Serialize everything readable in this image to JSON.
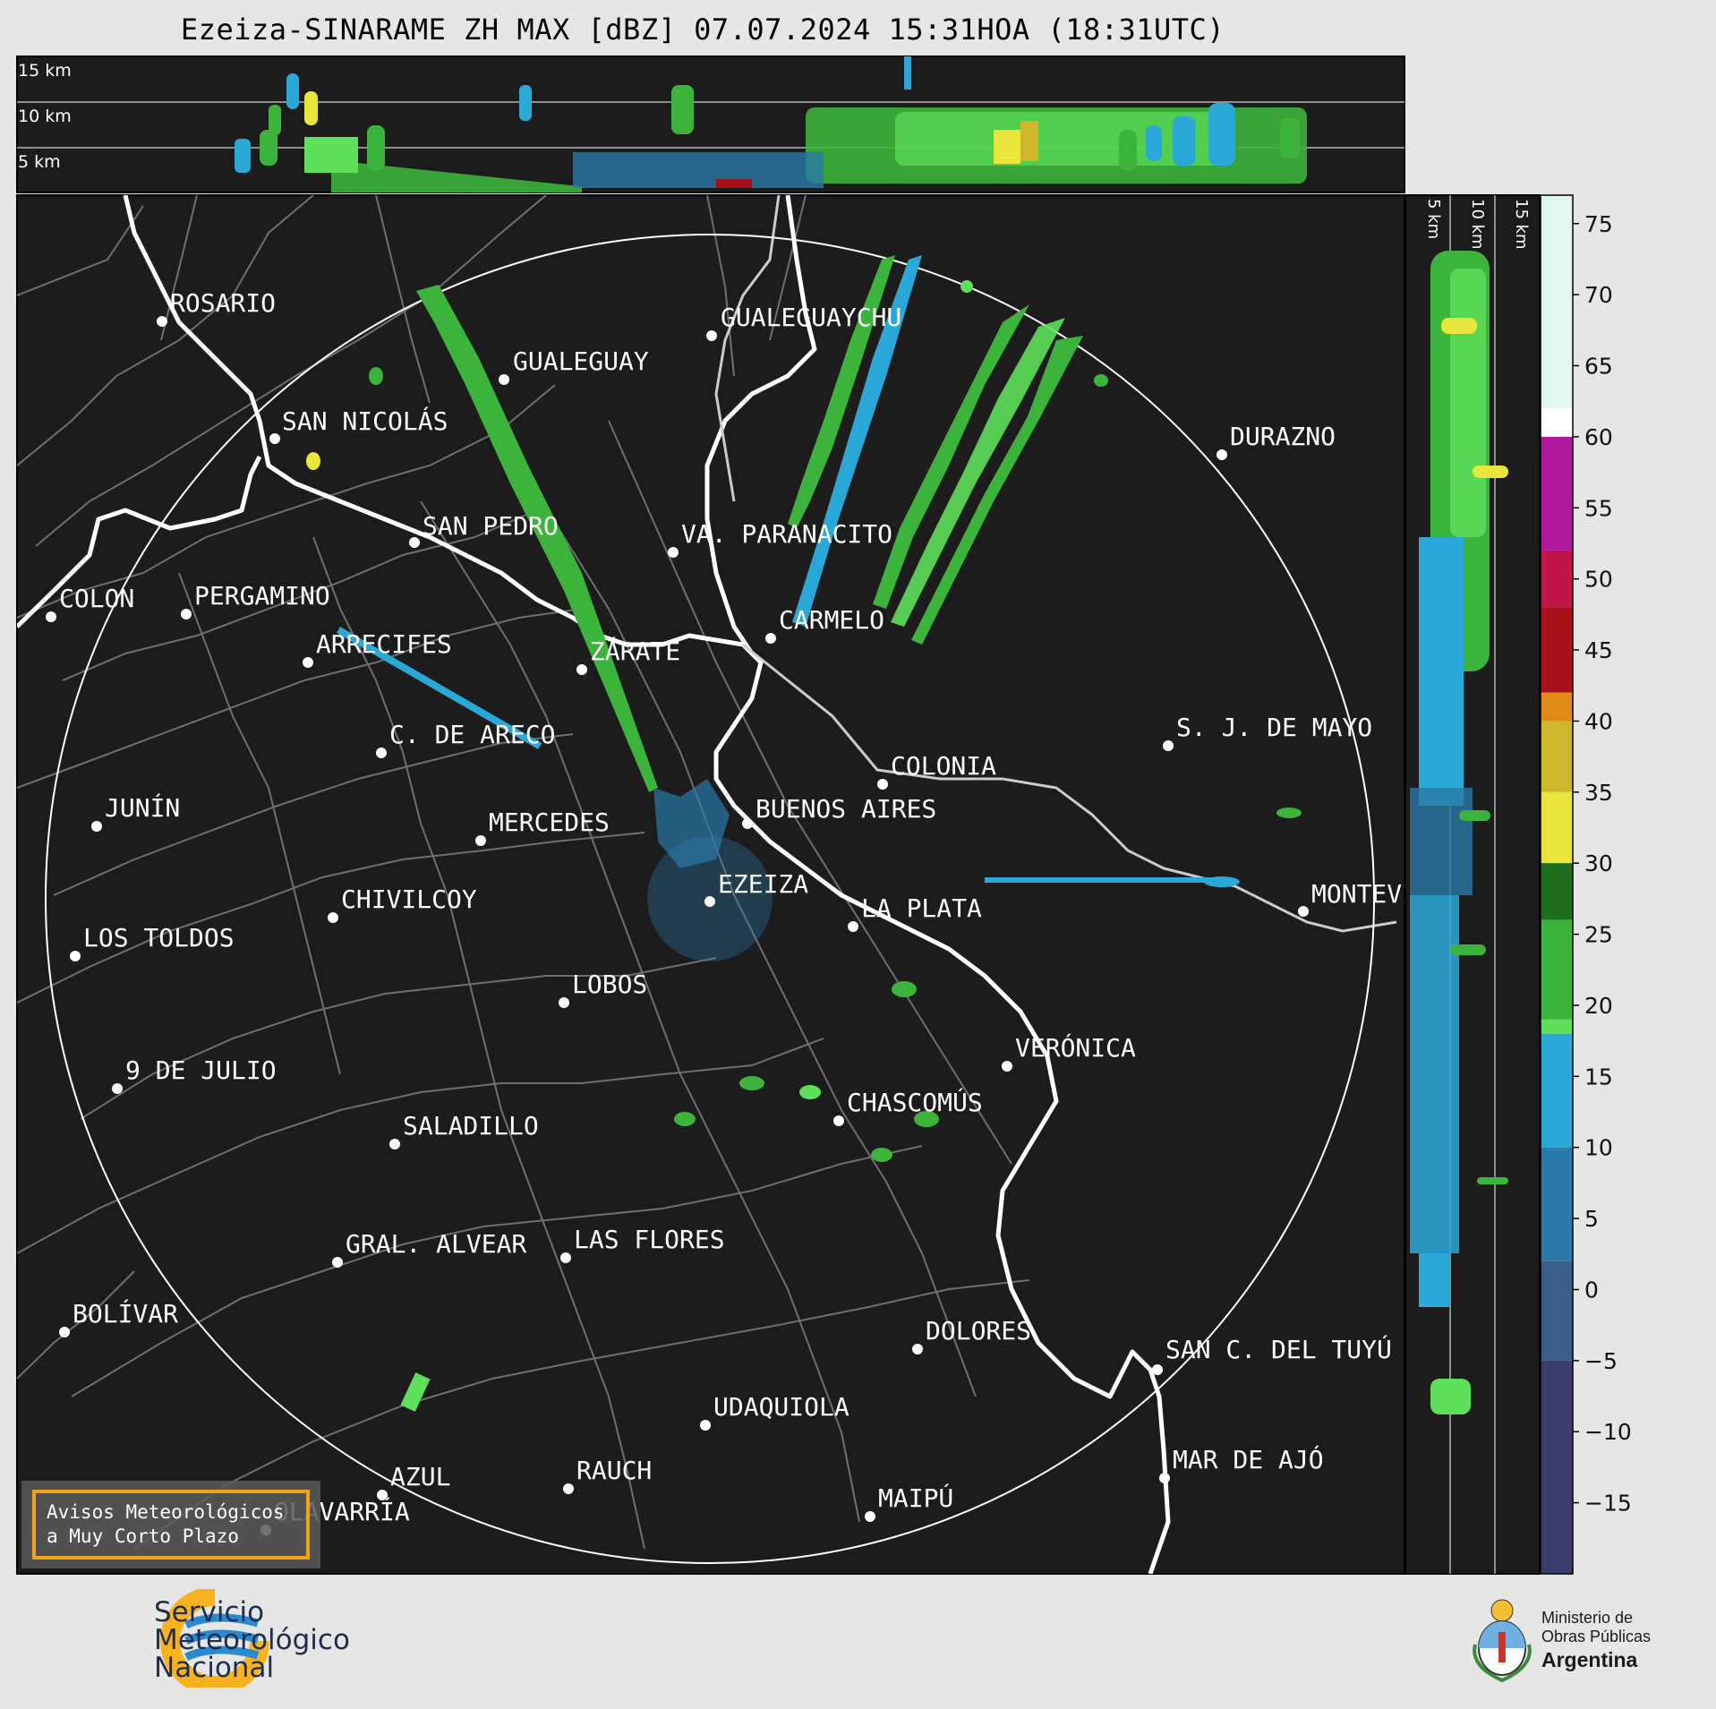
{
  "title": "Ezeiza-SINARAME ZH MAX [dBZ] 07.07.2024 15:31HOA (18:31UTC)",
  "top_panel_labels": [
    "15 km",
    "10 km",
    "5 km"
  ],
  "side_panel_labels": [
    "5 km",
    "10 km",
    "15 km"
  ],
  "colorbar": {
    "tick_labels": [
      "75",
      "70",
      "65",
      "60",
      "55",
      "50",
      "45",
      "40",
      "35",
      "30",
      "25",
      "20",
      "15",
      "10",
      "5",
      "0",
      "−5",
      "−10",
      "−15"
    ],
    "bands": [
      {
        "from": 60,
        "to": 77,
        "color": "#dff7ee"
      },
      {
        "from": 60,
        "to": 62,
        "color": "#ffffff"
      },
      {
        "from": 52,
        "to": 60,
        "color": "#b0189e"
      },
      {
        "from": 48,
        "to": 52,
        "color": "#c2164a"
      },
      {
        "from": 42,
        "to": 48,
        "color": "#a8101a"
      },
      {
        "from": 40,
        "to": 42,
        "color": "#e08a18"
      },
      {
        "from": 35,
        "to": 40,
        "color": "#cdb629"
      },
      {
        "from": 30,
        "to": 35,
        "color": "#e8e63a"
      },
      {
        "from": 26,
        "to": 30,
        "color": "#1e6e1e"
      },
      {
        "from": 19,
        "to": 26,
        "color": "#3cb43c"
      },
      {
        "from": 18,
        "to": 19,
        "color": "#5ee05a"
      },
      {
        "from": 10,
        "to": 18,
        "color": "#2aa8d8"
      },
      {
        "from": 2,
        "to": 10,
        "color": "#2a79a8"
      },
      {
        "from": -5,
        "to": 2,
        "color": "#3a5e8a"
      },
      {
        "from": -20,
        "to": -5,
        "color": "#3b3f6e"
      }
    ]
  },
  "cities": [
    {
      "name": "ROSARIO"
    },
    {
      "name": "GUALEGUAYCHU"
    },
    {
      "name": "GUALEGUAY"
    },
    {
      "name": "SAN NICOLÁS"
    },
    {
      "name": "DURAZNO"
    },
    {
      "name": "SAN PEDRO"
    },
    {
      "name": "VA. PARANACITO"
    },
    {
      "name": "COLON"
    },
    {
      "name": "PERGAMINO"
    },
    {
      "name": "CARMELO"
    },
    {
      "name": "ARRECIFES"
    },
    {
      "name": "ZÁRATE"
    },
    {
      "name": "S. J. DE MAYO"
    },
    {
      "name": "C. DE ARECO"
    },
    {
      "name": "COLONIA"
    },
    {
      "name": "JUNÍN"
    },
    {
      "name": "BUENOS AIRES"
    },
    {
      "name": "MERCEDES"
    },
    {
      "name": "EZEIZA"
    },
    {
      "name": "MONTEVIDEO"
    },
    {
      "name": "CHIVILCOY"
    },
    {
      "name": "LA PLATA"
    },
    {
      "name": "LOS TOLDOS"
    },
    {
      "name": "LOBOS"
    },
    {
      "name": "VERÓNICA"
    },
    {
      "name": "9 DE JULIO"
    },
    {
      "name": "CHASCOMÚS"
    },
    {
      "name": "SALADILLO"
    },
    {
      "name": "GRAL. ALVEAR"
    },
    {
      "name": "LAS FLORES"
    },
    {
      "name": "BOLÍVAR"
    },
    {
      "name": "DOLORES"
    },
    {
      "name": "SAN C. DEL TUYÚ"
    },
    {
      "name": "UDAQUIOLA"
    },
    {
      "name": "MAR DE AJÓ"
    },
    {
      "name": "AZUL"
    },
    {
      "name": "RAUCH"
    },
    {
      "name": "OLAVARRÍA"
    },
    {
      "name": "MAIPÚ"
    }
  ],
  "alert_box": {
    "line1": "Avisos Meteorológicos",
    "line2": "a Muy Corto Plazo"
  },
  "footer": {
    "srv_line1": "Servicio",
    "srv_line2": "Meteorológico",
    "srv_line3": "Nacional",
    "mop_line1": "Ministerio de",
    "mop_line2": "Obras Públicas",
    "mop_line3": "Argentina"
  },
  "colors": {
    "map_bg": "#1c1c1c",
    "border": "#6e6e6e",
    "coast": "#ffffff",
    "accent_orange": "#f0a21a",
    "srv_blue": "#2a8ad0"
  }
}
